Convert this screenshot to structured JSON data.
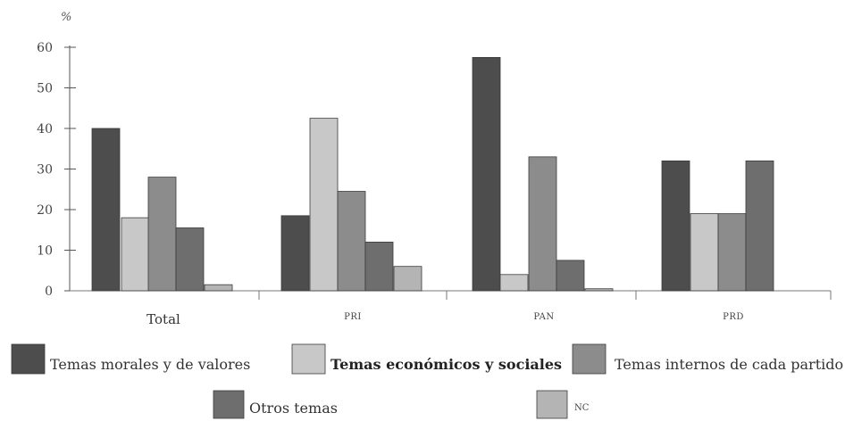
{
  "chart_data": {
    "type": "bar",
    "unit_label": "%",
    "categories": [
      "Total",
      "PRI",
      "PAN",
      "PRD"
    ],
    "ylim": [
      0,
      60
    ],
    "yticks": [
      0,
      10,
      20,
      30,
      40,
      50,
      60
    ],
    "grid": false,
    "legend_position": "bottom",
    "series": [
      {
        "name": "Temas morales y de valores",
        "color": "#4d4d4d",
        "values": [
          40,
          18.5,
          57.5,
          32
        ]
      },
      {
        "name": "Temas económicos y sociales",
        "color": "#c8c8c8",
        "values": [
          18,
          42.5,
          4,
          19
        ]
      },
      {
        "name": "Temas internos de cada partido",
        "color": "#8c8c8c",
        "values": [
          28,
          24.5,
          33,
          19
        ]
      },
      {
        "name": "Otros temas",
        "color": "#6e6e6e",
        "values": [
          15.5,
          12,
          7.5,
          32
        ]
      },
      {
        "name": "NC",
        "color": "#b4b4b4",
        "values": [
          1.5,
          6,
          0.5,
          0
        ]
      }
    ]
  }
}
